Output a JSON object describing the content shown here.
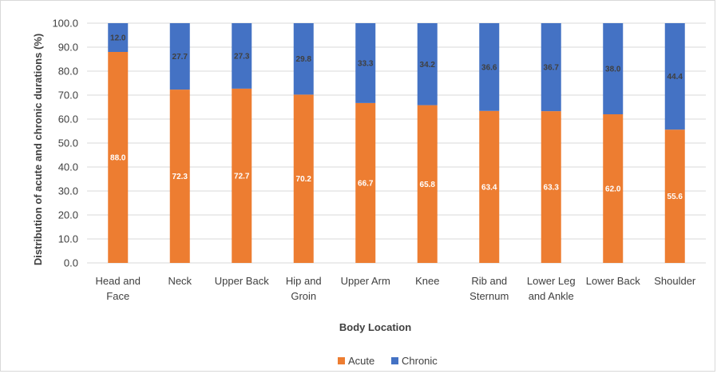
{
  "chart_data": {
    "type": "bar",
    "stacked": true,
    "categories": [
      [
        "Head and",
        "Face"
      ],
      [
        "Neck"
      ],
      [
        "Upper Back"
      ],
      [
        "Hip and",
        "Groin"
      ],
      [
        "Upper Arm"
      ],
      [
        "Knee"
      ],
      [
        "Rib and",
        "Sternum"
      ],
      [
        "Lower Leg",
        "and Ankle"
      ],
      [
        "Lower Back"
      ],
      [
        "Shoulder"
      ]
    ],
    "series": [
      {
        "name": "Acute",
        "color": "#ED7D31",
        "label_color": "#ffffff",
        "values": [
          88.0,
          72.3,
          72.7,
          70.2,
          66.7,
          65.8,
          63.4,
          63.3,
          62.0,
          55.6
        ]
      },
      {
        "name": "Chronic",
        "color": "#4472C4",
        "label_color": "#404040",
        "values": [
          12.0,
          27.7,
          27.3,
          29.8,
          33.3,
          34.2,
          36.6,
          36.7,
          38.0,
          44.4
        ]
      }
    ],
    "xlabel": "Body Location",
    "ylabel": "Distribution of acute and chronic durations  (%)",
    "ylim": [
      0,
      100
    ],
    "yticks": [
      "0.0",
      "10.0",
      "20.0",
      "30.0",
      "40.0",
      "50.0",
      "60.0",
      "70.0",
      "80.0",
      "90.0",
      "100.0"
    ],
    "grid": true,
    "legend_position": "bottom",
    "gridline_color": "#d9d9d9"
  }
}
